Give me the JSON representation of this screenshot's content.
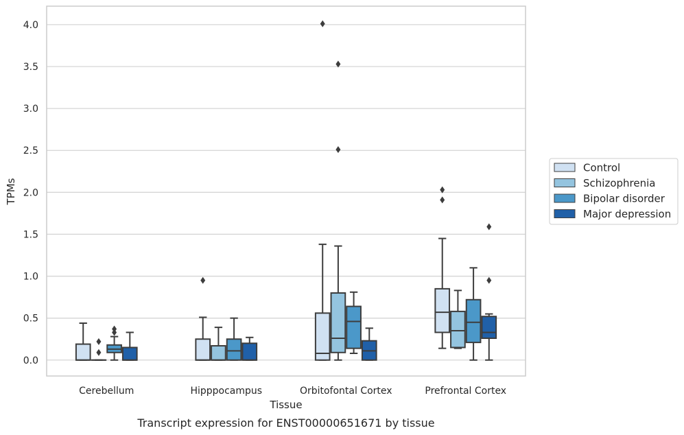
{
  "chart_data": {
    "type": "box",
    "caption": "Transcript expression for ENST00000651671 by tissue",
    "xlabel": "Tissue",
    "ylabel": "TPMs",
    "ylim": [
      -0.19,
      4.22
    ],
    "yticks": [
      0.0,
      0.5,
      1.0,
      1.5,
      2.0,
      2.5,
      3.0,
      3.5,
      4.0
    ],
    "ytick_labels": [
      "0.0",
      "0.5",
      "1.0",
      "1.5",
      "2.0",
      "2.5",
      "3.0",
      "3.5",
      "4.0"
    ],
    "grid": "horizontal",
    "legend_position": "right",
    "categories": [
      "Cerebellum",
      "Hipppocampus",
      "Orbitofontal Cortex",
      "Prefrontal Cortex"
    ],
    "series": [
      {
        "name": "Control",
        "color": "#d0e1f2",
        "boxes": [
          {
            "whislo": 0.0,
            "q1": 0.0,
            "med": 0.0,
            "q3": 0.19,
            "whishi": 0.44,
            "fliers": []
          },
          {
            "whislo": 0.0,
            "q1": 0.0,
            "med": 0.0,
            "q3": 0.25,
            "whishi": 0.51,
            "fliers": [
              0.95
            ]
          },
          {
            "whislo": 0.0,
            "q1": 0.0,
            "med": 0.08,
            "q3": 0.56,
            "whishi": 1.38,
            "fliers": [
              4.01
            ]
          },
          {
            "whislo": 0.14,
            "q1": 0.33,
            "med": 0.57,
            "q3": 0.85,
            "whishi": 1.45,
            "fliers": [
              2.03,
              1.91
            ]
          }
        ]
      },
      {
        "name": "Schizophrenia",
        "color": "#94c4df",
        "boxes": [
          {
            "whislo": 0.0,
            "q1": 0.0,
            "med": 0.0,
            "q3": 0.0,
            "whishi": 0.0,
            "fliers": [
              0.22,
              0.09
            ]
          },
          {
            "whislo": 0.0,
            "q1": 0.0,
            "med": 0.0,
            "q3": 0.17,
            "whishi": 0.39,
            "fliers": []
          },
          {
            "whislo": 0.0,
            "q1": 0.09,
            "med": 0.26,
            "q3": 0.8,
            "whishi": 1.36,
            "fliers": [
              3.53,
              2.51
            ]
          },
          {
            "whislo": 0.14,
            "q1": 0.15,
            "med": 0.35,
            "q3": 0.58,
            "whishi": 0.83,
            "fliers": []
          }
        ]
      },
      {
        "name": "Bipolar disorder",
        "color": "#4b98c9",
        "boxes": [
          {
            "whislo": 0.0,
            "q1": 0.09,
            "med": 0.13,
            "q3": 0.18,
            "whishi": 0.28,
            "fliers": [
              0.37,
              0.33
            ]
          },
          {
            "whislo": 0.0,
            "q1": 0.0,
            "med": 0.11,
            "q3": 0.25,
            "whishi": 0.5,
            "fliers": []
          },
          {
            "whislo": 0.08,
            "q1": 0.14,
            "med": 0.46,
            "q3": 0.64,
            "whishi": 0.81,
            "fliers": []
          },
          {
            "whislo": 0.0,
            "q1": 0.21,
            "med": 0.45,
            "q3": 0.72,
            "whishi": 1.1,
            "fliers": []
          }
        ]
      },
      {
        "name": "Major depression",
        "color": "#2060a8",
        "boxes": [
          {
            "whislo": 0.0,
            "q1": 0.0,
            "med": 0.0,
            "q3": 0.15,
            "whishi": 0.33,
            "fliers": []
          },
          {
            "whislo": 0.0,
            "q1": 0.0,
            "med": 0.0,
            "q3": 0.2,
            "whishi": 0.27,
            "fliers": []
          },
          {
            "whislo": 0.0,
            "q1": 0.0,
            "med": 0.11,
            "q3": 0.23,
            "whishi": 0.38,
            "fliers": []
          },
          {
            "whislo": 0.0,
            "q1": 0.26,
            "med": 0.33,
            "q3": 0.52,
            "whishi": 0.55,
            "fliers": [
              1.59,
              0.95
            ]
          }
        ]
      }
    ]
  }
}
